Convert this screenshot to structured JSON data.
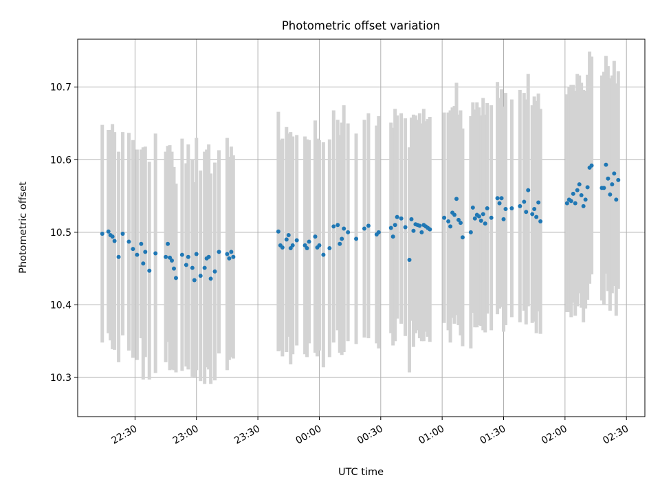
{
  "chart_data": {
    "type": "scatter",
    "title": "Photometric offset variation",
    "xlabel": "UTC time",
    "ylabel": "Photometric offset",
    "x_unit": "UTC minutes from 22:00",
    "xlim": [
      "22:02",
      "02:39"
    ],
    "ylim": [
      10.246,
      10.766
    ],
    "x_ticks": [
      "22:30",
      "23:00",
      "23:30",
      "00:00",
      "00:30",
      "01:00",
      "01:30",
      "02:00",
      "02:30"
    ],
    "y_ticks": [
      "10.3",
      "10.4",
      "10.5",
      "10.6",
      "10.7"
    ],
    "grid": true,
    "legend": "none",
    "colors": {
      "points": "#1f77b4",
      "errorbars": "#d3d3d3",
      "grid": "#b0b0b0"
    },
    "series": [
      {
        "error_bars": true,
        "points": [
          {
            "t": "22:14",
            "y": 10.498,
            "err": 0.15
          },
          {
            "t": "22:17",
            "y": 10.501,
            "err": 0.14
          },
          {
            "t": "22:18",
            "y": 10.496,
            "err": 0.145
          },
          {
            "t": "22:19",
            "y": 10.494,
            "err": 0.155
          },
          {
            "t": "22:20",
            "y": 10.488,
            "err": 0.15
          },
          {
            "t": "22:22",
            "y": 10.466,
            "err": 0.145
          },
          {
            "t": "22:24",
            "y": 10.498,
            "err": 0.14
          },
          {
            "t": "22:27",
            "y": 10.487,
            "err": 0.15
          },
          {
            "t": "22:29",
            "y": 10.477,
            "err": 0.15
          },
          {
            "t": "22:31",
            "y": 10.469,
            "err": 0.145
          },
          {
            "t": "22:33",
            "y": 10.484,
            "err": 0.13
          },
          {
            "t": "22:34",
            "y": 10.457,
            "err": 0.16
          },
          {
            "t": "22:35",
            "y": 10.473,
            "err": 0.145
          },
          {
            "t": "22:37",
            "y": 10.447,
            "err": 0.15
          },
          {
            "t": "22:40",
            "y": 10.471,
            "err": 0.165
          },
          {
            "t": "22:45",
            "y": 10.466,
            "err": 0.145
          },
          {
            "t": "22:46",
            "y": 10.484,
            "err": 0.135
          },
          {
            "t": "22:47",
            "y": 10.465,
            "err": 0.155
          },
          {
            "t": "22:48",
            "y": 10.461,
            "err": 0.15
          },
          {
            "t": "22:49",
            "y": 10.45,
            "err": 0.14
          },
          {
            "t": "22:50",
            "y": 10.437,
            "err": 0.13
          },
          {
            "t": "22:53",
            "y": 10.469,
            "err": 0.16
          },
          {
            "t": "22:55",
            "y": 10.455,
            "err": 0.14
          },
          {
            "t": "22:56",
            "y": 10.466,
            "err": 0.155
          },
          {
            "t": "22:58",
            "y": 10.451,
            "err": 0.15
          },
          {
            "t": "22:59",
            "y": 10.434,
            "err": 0.135
          },
          {
            "t": "23:00",
            "y": 10.47,
            "err": 0.16
          },
          {
            "t": "23:02",
            "y": 10.44,
            "err": 0.145
          },
          {
            "t": "23:04",
            "y": 10.451,
            "err": 0.16
          },
          {
            "t": "23:05",
            "y": 10.464,
            "err": 0.15
          },
          {
            "t": "23:06",
            "y": 10.466,
            "err": 0.155
          },
          {
            "t": "23:07",
            "y": 10.436,
            "err": 0.145
          },
          {
            "t": "23:09",
            "y": 10.446,
            "err": 0.15
          },
          {
            "t": "23:11",
            "y": 10.473,
            "err": 0.14
          },
          {
            "t": "23:15",
            "y": 10.47,
            "err": 0.16
          },
          {
            "t": "23:16",
            "y": 10.464,
            "err": 0.14
          },
          {
            "t": "23:17",
            "y": 10.473,
            "err": 0.145
          },
          {
            "t": "23:18",
            "y": 10.466,
            "err": 0.14
          },
          {
            "t": "23:40",
            "y": 10.501,
            "err": 0.165
          },
          {
            "t": "23:41",
            "y": 10.482,
            "err": 0.145
          },
          {
            "t": "23:42",
            "y": 10.479,
            "err": 0.15
          },
          {
            "t": "23:44",
            "y": 10.49,
            "err": 0.155
          },
          {
            "t": "23:45",
            "y": 10.496,
            "err": 0.14
          },
          {
            "t": "23:46",
            "y": 10.478,
            "err": 0.16
          },
          {
            "t": "23:47",
            "y": 10.482,
            "err": 0.15
          },
          {
            "t": "23:49",
            "y": 10.489,
            "err": 0.145
          },
          {
            "t": "23:53",
            "y": 10.482,
            "err": 0.15
          },
          {
            "t": "23:54",
            "y": 10.478,
            "err": 0.15
          },
          {
            "t": "23:55",
            "y": 10.487,
            "err": 0.14
          },
          {
            "t": "23:58",
            "y": 10.494,
            "err": 0.16
          },
          {
            "t": "23:59",
            "y": 10.479,
            "err": 0.15
          },
          {
            "t": "00:00",
            "y": 10.482,
            "err": 0.145
          },
          {
            "t": "00:02",
            "y": 10.469,
            "err": 0.155
          },
          {
            "t": "00:05",
            "y": 10.478,
            "err": 0.15
          },
          {
            "t": "00:07",
            "y": 10.508,
            "err": 0.16
          },
          {
            "t": "00:09",
            "y": 10.51,
            "err": 0.145
          },
          {
            "t": "00:10",
            "y": 10.484,
            "err": 0.15
          },
          {
            "t": "00:11",
            "y": 10.491,
            "err": 0.16
          },
          {
            "t": "00:12",
            "y": 10.505,
            "err": 0.17
          },
          {
            "t": "00:14",
            "y": 10.5,
            "err": 0.15
          },
          {
            "t": "00:18",
            "y": 10.491,
            "err": 0.145
          },
          {
            "t": "00:22",
            "y": 10.505,
            "err": 0.15
          },
          {
            "t": "00:24",
            "y": 10.509,
            "err": 0.155
          },
          {
            "t": "00:28",
            "y": 10.497,
            "err": 0.15
          },
          {
            "t": "00:29",
            "y": 10.5,
            "err": 0.16
          },
          {
            "t": "00:35",
            "y": 10.506,
            "err": 0.145
          },
          {
            "t": "00:36",
            "y": 10.494,
            "err": 0.15
          },
          {
            "t": "00:37",
            "y": 10.51,
            "err": 0.16
          },
          {
            "t": "00:38",
            "y": 10.521,
            "err": 0.14
          },
          {
            "t": "00:40",
            "y": 10.519,
            "err": 0.145
          },
          {
            "t": "00:42",
            "y": 10.507,
            "err": 0.15
          },
          {
            "t": "00:44",
            "y": 10.462,
            "err": 0.155
          },
          {
            "t": "00:45",
            "y": 10.518,
            "err": 0.14
          },
          {
            "t": "00:46",
            "y": 10.502,
            "err": 0.16
          },
          {
            "t": "00:47",
            "y": 10.511,
            "err": 0.15
          },
          {
            "t": "00:48",
            "y": 10.51,
            "err": 0.145
          },
          {
            "t": "00:49",
            "y": 10.509,
            "err": 0.155
          },
          {
            "t": "00:50",
            "y": 10.5,
            "err": 0.15
          },
          {
            "t": "00:51",
            "y": 10.51,
            "err": 0.16
          },
          {
            "t": "00:52",
            "y": 10.508,
            "err": 0.145
          },
          {
            "t": "00:53",
            "y": 10.506,
            "err": 0.15
          },
          {
            "t": "00:54",
            "y": 10.504,
            "err": 0.155
          },
          {
            "t": "01:01",
            "y": 10.52,
            "err": 0.145
          },
          {
            "t": "01:03",
            "y": 10.515,
            "err": 0.15
          },
          {
            "t": "01:04",
            "y": 10.508,
            "err": 0.16
          },
          {
            "t": "01:05",
            "y": 10.527,
            "err": 0.145
          },
          {
            "t": "01:06",
            "y": 10.524,
            "err": 0.15
          },
          {
            "t": "01:07",
            "y": 10.546,
            "err": 0.16
          },
          {
            "t": "01:08",
            "y": 10.517,
            "err": 0.145
          },
          {
            "t": "01:09",
            "y": 10.513,
            "err": 0.155
          },
          {
            "t": "01:10",
            "y": 10.493,
            "err": 0.15
          },
          {
            "t": "01:14",
            "y": 10.5,
            "err": 0.16
          },
          {
            "t": "01:15",
            "y": 10.534,
            "err": 0.145
          },
          {
            "t": "01:16",
            "y": 10.519,
            "err": 0.15
          },
          {
            "t": "01:17",
            "y": 10.524,
            "err": 0.155
          },
          {
            "t": "01:18",
            "y": 10.522,
            "err": 0.15
          },
          {
            "t": "01:19",
            "y": 10.516,
            "err": 0.145
          },
          {
            "t": "01:20",
            "y": 10.525,
            "err": 0.16
          },
          {
            "t": "01:21",
            "y": 10.512,
            "err": 0.15
          },
          {
            "t": "01:22",
            "y": 10.533,
            "err": 0.145
          },
          {
            "t": "01:24",
            "y": 10.52,
            "err": 0.155
          },
          {
            "t": "01:27",
            "y": 10.547,
            "err": 0.16
          },
          {
            "t": "01:28",
            "y": 10.54,
            "err": 0.145
          },
          {
            "t": "01:29",
            "y": 10.547,
            "err": 0.15
          },
          {
            "t": "01:30",
            "y": 10.518,
            "err": 0.155
          },
          {
            "t": "01:31",
            "y": 10.532,
            "err": 0.16
          },
          {
            "t": "01:34",
            "y": 10.533,
            "err": 0.15
          },
          {
            "t": "01:38",
            "y": 10.536,
            "err": 0.16
          },
          {
            "t": "01:40",
            "y": 10.542,
            "err": 0.15
          },
          {
            "t": "01:41",
            "y": 10.528,
            "err": 0.155
          },
          {
            "t": "01:42",
            "y": 10.558,
            "err": 0.16
          },
          {
            "t": "01:44",
            "y": 10.525,
            "err": 0.15
          },
          {
            "t": "01:45",
            "y": 10.532,
            "err": 0.155
          },
          {
            "t": "01:46",
            "y": 10.521,
            "err": 0.16
          },
          {
            "t": "01:47",
            "y": 10.541,
            "err": 0.15
          },
          {
            "t": "01:48",
            "y": 10.515,
            "err": 0.155
          },
          {
            "t": "02:01",
            "y": 10.54,
            "err": 0.15
          },
          {
            "t": "02:02",
            "y": 10.545,
            "err": 0.155
          },
          {
            "t": "02:03",
            "y": 10.543,
            "err": 0.16
          },
          {
            "t": "02:04",
            "y": 10.553,
            "err": 0.15
          },
          {
            "t": "02:05",
            "y": 10.54,
            "err": 0.155
          },
          {
            "t": "02:06",
            "y": 10.558,
            "err": 0.16
          },
          {
            "t": "02:07",
            "y": 10.566,
            "err": 0.15
          },
          {
            "t": "02:08",
            "y": 10.551,
            "err": 0.155
          },
          {
            "t": "02:09",
            "y": 10.536,
            "err": 0.16
          },
          {
            "t": "02:10",
            "y": 10.545,
            "err": 0.15
          },
          {
            "t": "02:11",
            "y": 10.562,
            "err": 0.155
          },
          {
            "t": "02:12",
            "y": 10.589,
            "err": 0.16
          },
          {
            "t": "02:13",
            "y": 10.592,
            "err": 0.15
          },
          {
            "t": "02:18",
            "y": 10.561,
            "err": 0.155
          },
          {
            "t": "02:19",
            "y": 10.561,
            "err": 0.16
          },
          {
            "t": "02:20",
            "y": 10.593,
            "err": 0.15
          },
          {
            "t": "02:21",
            "y": 10.574,
            "err": 0.155
          },
          {
            "t": "02:22",
            "y": 10.552,
            "err": 0.16
          },
          {
            "t": "02:23",
            "y": 10.566,
            "err": 0.15
          },
          {
            "t": "02:24",
            "y": 10.581,
            "err": 0.155
          },
          {
            "t": "02:25",
            "y": 10.545,
            "err": 0.16
          },
          {
            "t": "02:26",
            "y": 10.572,
            "err": 0.15
          }
        ]
      }
    ]
  }
}
